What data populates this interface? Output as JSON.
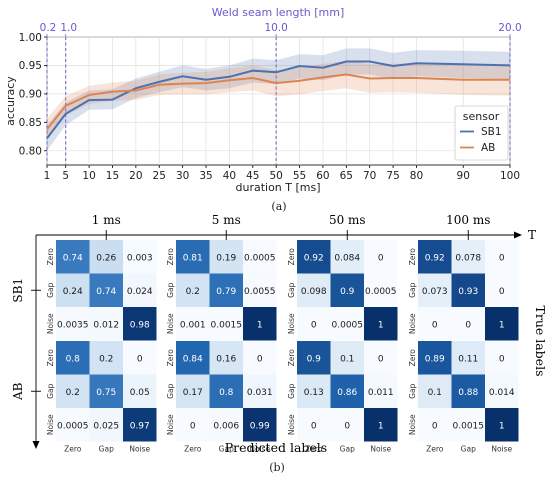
{
  "chart_data": [
    {
      "type": "line",
      "panel_label": "(a)",
      "title": "",
      "xlabel": "duration T [ms]",
      "ylabel": "accuracy",
      "top_axis_label": "Weld seam length [mm]",
      "x_ticks": [
        1,
        5,
        10,
        15,
        20,
        25,
        30,
        35,
        40,
        45,
        50,
        55,
        60,
        65,
        70,
        75,
        80,
        90,
        100
      ],
      "x_tick_labels": [
        "1",
        "5",
        "10",
        "15",
        "20",
        "25",
        "30",
        "35",
        "40",
        "45",
        "50",
        "55",
        "60",
        "65",
        "70",
        "75",
        "80",
        "90",
        "100"
      ],
      "top_ticks": [
        {
          "label": "0.2",
          "x": 1
        },
        {
          "label": "1.0",
          "x": 5
        },
        {
          "label": "10.0",
          "x": 50
        },
        {
          "label": "20.0",
          "x": 100
        }
      ],
      "y_ticks": [
        0.8,
        0.85,
        0.9,
        0.95,
        1.0
      ],
      "y_tick_labels": [
        "0.80",
        "0.85",
        "0.90",
        "0.95",
        "1.00"
      ],
      "ylim": [
        0.775,
        1.0
      ],
      "grid": true,
      "legend": {
        "title": "sensor",
        "placement": "lower-right"
      },
      "series": [
        {
          "name": "SB1",
          "color": "#4c72b0",
          "values": [
            0.822,
            0.865,
            0.889,
            0.89,
            0.91,
            0.921,
            0.931,
            0.925,
            0.93,
            0.941,
            0.938,
            0.949,
            0.946,
            0.957,
            0.957,
            0.949,
            0.954,
            0.952,
            0.95
          ],
          "lower": [
            0.8,
            0.845,
            0.872,
            0.873,
            0.893,
            0.903,
            0.912,
            0.906,
            0.91,
            0.92,
            0.917,
            0.927,
            0.924,
            0.934,
            0.934,
            0.926,
            0.931,
            0.928,
            0.926
          ],
          "upper": [
            0.845,
            0.885,
            0.906,
            0.908,
            0.927,
            0.939,
            0.95,
            0.944,
            0.95,
            0.962,
            0.959,
            0.97,
            0.968,
            0.98,
            0.98,
            0.972,
            0.977,
            0.976,
            0.974
          ]
        },
        {
          "name": "AB",
          "color": "#dd8452",
          "values": [
            0.838,
            0.879,
            0.898,
            0.904,
            0.906,
            0.916,
            0.918,
            0.919,
            0.924,
            0.928,
            0.919,
            0.923,
            0.929,
            0.934,
            0.927,
            0.928,
            0.928,
            0.925,
            0.925
          ],
          "lower": [
            0.82,
            0.862,
            0.882,
            0.888,
            0.889,
            0.898,
            0.899,
            0.899,
            0.903,
            0.906,
            0.896,
            0.899,
            0.905,
            0.91,
            0.902,
            0.903,
            0.902,
            0.898,
            0.897
          ],
          "upper": [
            0.857,
            0.896,
            0.914,
            0.92,
            0.923,
            0.934,
            0.937,
            0.939,
            0.945,
            0.95,
            0.942,
            0.947,
            0.953,
            0.958,
            0.952,
            0.953,
            0.954,
            0.952,
            0.953
          ]
        }
      ]
    },
    {
      "type": "heatmap",
      "panel_label": "(b)",
      "xlabel": "Predicted labels",
      "ylabel": "True labels",
      "time_axis_label": "T",
      "classes": [
        "Zero",
        "Gap",
        "Noise"
      ],
      "durations": [
        "1 ms",
        "5 ms",
        "50 ms",
        "100 ms"
      ],
      "sensors": [
        "SB1",
        "AB"
      ],
      "matrices": {
        "SB1": [
          {
            "labels": [
              [
                "0.74",
                "0.26",
                "0.003"
              ],
              [
                "0.24",
                "0.74",
                "0.024"
              ],
              [
                "0.0035",
                "0.012",
                "0.98"
              ]
            ],
            "values": [
              [
                0.74,
                0.26,
                0.003
              ],
              [
                0.24,
                0.74,
                0.024
              ],
              [
                0.0035,
                0.012,
                0.98
              ]
            ]
          },
          {
            "labels": [
              [
                "0.81",
                "0.19",
                "0.0005"
              ],
              [
                "0.2",
                "0.79",
                "0.0055"
              ],
              [
                "0.001",
                "0.0015",
                "1"
              ]
            ],
            "values": [
              [
                0.81,
                0.19,
                0.0005
              ],
              [
                0.2,
                0.79,
                0.0055
              ],
              [
                0.001,
                0.0015,
                1
              ]
            ]
          },
          {
            "labels": [
              [
                "0.92",
                "0.084",
                "0"
              ],
              [
                "0.098",
                "0.9",
                "0.0005"
              ],
              [
                "0",
                "0.0005",
                "1"
              ]
            ],
            "values": [
              [
                0.92,
                0.084,
                0
              ],
              [
                0.098,
                0.9,
                0.0005
              ],
              [
                0,
                0.0005,
                1
              ]
            ]
          },
          {
            "labels": [
              [
                "0.92",
                "0.078",
                "0"
              ],
              [
                "0.073",
                "0.93",
                "0"
              ],
              [
                "0",
                "0",
                "1"
              ]
            ],
            "values": [
              [
                0.92,
                0.078,
                0
              ],
              [
                0.073,
                0.93,
                0
              ],
              [
                0,
                0,
                1
              ]
            ]
          }
        ],
        "AB": [
          {
            "labels": [
              [
                "0.8",
                "0.2",
                "0"
              ],
              [
                "0.2",
                "0.75",
                "0.05"
              ],
              [
                "0.0005",
                "0.025",
                "0.97"
              ]
            ],
            "values": [
              [
                0.8,
                0.2,
                0
              ],
              [
                0.2,
                0.75,
                0.05
              ],
              [
                0.0005,
                0.025,
                0.97
              ]
            ]
          },
          {
            "labels": [
              [
                "0.84",
                "0.16",
                "0"
              ],
              [
                "0.17",
                "0.8",
                "0.031"
              ],
              [
                "0",
                "0.006",
                "0.99"
              ]
            ],
            "values": [
              [
                0.84,
                0.16,
                0
              ],
              [
                0.17,
                0.8,
                0.031
              ],
              [
                0,
                0.006,
                0.99
              ]
            ]
          },
          {
            "labels": [
              [
                "0.9",
                "0.1",
                "0"
              ],
              [
                "0.13",
                "0.86",
                "0.011"
              ],
              [
                "0",
                "0",
                "1"
              ]
            ],
            "values": [
              [
                0.9,
                0.1,
                0
              ],
              [
                0.13,
                0.86,
                0.011
              ],
              [
                0,
                0,
                1
              ]
            ]
          },
          {
            "labels": [
              [
                "0.89",
                "0.11",
                "0"
              ],
              [
                "0.1",
                "0.88",
                "0.014"
              ],
              [
                "0",
                "0.0015",
                "1"
              ]
            ],
            "values": [
              [
                0.89,
                0.11,
                0
              ],
              [
                0.1,
                0.88,
                0.014
              ],
              [
                0,
                0.0015,
                1
              ]
            ]
          }
        ]
      }
    }
  ]
}
